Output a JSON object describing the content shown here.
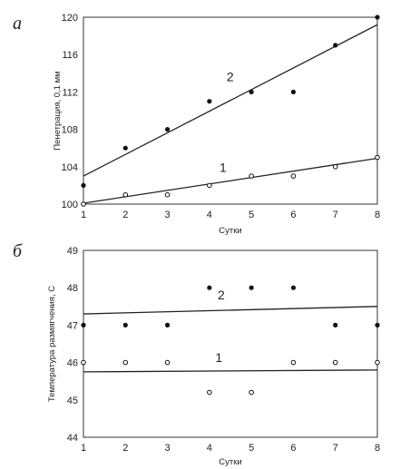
{
  "chart_data": [
    {
      "panel": "а",
      "type": "scatter",
      "xlabel": "Сутки",
      "ylabel": "Пенетрация, 0,1 мм",
      "xlim": [
        1,
        8
      ],
      "ylim": [
        100,
        120
      ],
      "x_ticks": [
        "1",
        "2",
        "3",
        "4",
        "5",
        "6",
        "7",
        "8"
      ],
      "y_ticks": [
        "100",
        "104",
        "108",
        "112",
        "116",
        "120"
      ],
      "series": [
        {
          "name": "2",
          "marker": "filled",
          "points": [
            [
              1,
              102
            ],
            [
              2,
              106
            ],
            [
              3,
              108
            ],
            [
              4,
              111
            ],
            [
              5,
              112
            ],
            [
              6,
              112
            ],
            [
              7,
              117
            ],
            [
              8,
              120
            ]
          ],
          "trendline": [
            [
              1,
              103
            ],
            [
              8,
              119.2
            ]
          ]
        },
        {
          "name": "1",
          "marker": "open",
          "points": [
            [
              1,
              100
            ],
            [
              2,
              101
            ],
            [
              3,
              101
            ],
            [
              4,
              102
            ],
            [
              5,
              103
            ],
            [
              6,
              103
            ],
            [
              7,
              104
            ],
            [
              8,
              105
            ]
          ],
          "trendline": [
            [
              1,
              100.1
            ],
            [
              8,
              104.9
            ]
          ]
        }
      ]
    },
    {
      "panel": "б",
      "type": "scatter",
      "xlabel": "Сутки",
      "ylabel": "Температура размягчения, С",
      "xlim": [
        1,
        8
      ],
      "ylim": [
        44,
        49
      ],
      "x_ticks": [
        "1",
        "2",
        "3",
        "4",
        "5",
        "6",
        "7",
        "8"
      ],
      "y_ticks": [
        "44",
        "45",
        "46",
        "47",
        "48",
        "49"
      ],
      "series": [
        {
          "name": "2",
          "marker": "filled",
          "points": [
            [
              1,
              47
            ],
            [
              2,
              47
            ],
            [
              3,
              47
            ],
            [
              4,
              48
            ],
            [
              5,
              48
            ],
            [
              6,
              48
            ],
            [
              7,
              47
            ],
            [
              8,
              47
            ]
          ],
          "trendline": [
            [
              1,
              47.3
            ],
            [
              8,
              47.5
            ]
          ]
        },
        {
          "name": "1",
          "marker": "open",
          "points": [
            [
              1,
              46
            ],
            [
              2,
              46
            ],
            [
              3,
              46
            ],
            [
              4,
              45.2
            ],
            [
              5,
              45.2
            ],
            [
              6,
              46
            ],
            [
              7,
              46
            ],
            [
              8,
              46
            ]
          ],
          "trendline": [
            [
              1,
              45.75
            ],
            [
              8,
              45.8
            ]
          ]
        }
      ]
    }
  ]
}
